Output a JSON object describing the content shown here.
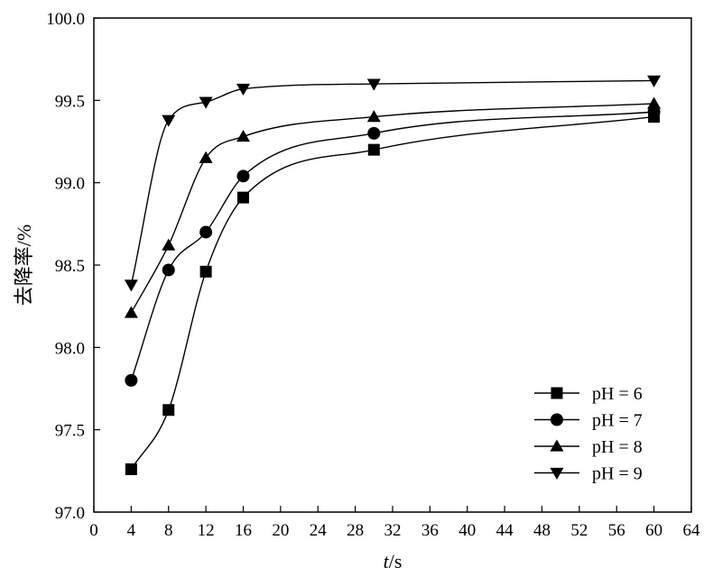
{
  "chart_data": {
    "type": "scatter",
    "title": "",
    "xlabel_italic": "t",
    "xlabel_rest": "/s",
    "ylabel": "去降率/%",
    "xlim": [
      0,
      64
    ],
    "ylim": [
      97.0,
      100.0
    ],
    "xticks": [
      "0",
      "4",
      "8",
      "12",
      "16",
      "20",
      "24",
      "28",
      "32",
      "36",
      "40",
      "44",
      "48",
      "52",
      "56",
      "60",
      "64"
    ],
    "yticks": [
      "97.0",
      "97.5",
      "98.0",
      "98.5",
      "99.0",
      "99.5",
      "100.0"
    ],
    "grid": false,
    "legend_position": "bottom-right",
    "series": [
      {
        "name": "pH = 6",
        "marker": "square",
        "x": [
          4,
          8,
          12,
          16,
          30,
          60
        ],
        "y": [
          97.26,
          97.62,
          98.46,
          98.91,
          99.2,
          99.4
        ]
      },
      {
        "name": "pH = 7",
        "marker": "circle",
        "x": [
          4,
          8,
          12,
          16,
          30,
          60
        ],
        "y": [
          97.8,
          98.47,
          98.7,
          99.04,
          99.3,
          99.43
        ]
      },
      {
        "name": "pH = 8",
        "marker": "triangle-up",
        "x": [
          4,
          8,
          12,
          16,
          30,
          60
        ],
        "y": [
          98.21,
          98.62,
          99.15,
          99.28,
          99.4,
          99.48
        ]
      },
      {
        "name": "pH = 9",
        "marker": "triangle-down",
        "x": [
          4,
          8,
          12,
          16,
          30,
          60
        ],
        "y": [
          98.38,
          99.38,
          99.49,
          99.57,
          99.6,
          99.62
        ]
      }
    ]
  }
}
